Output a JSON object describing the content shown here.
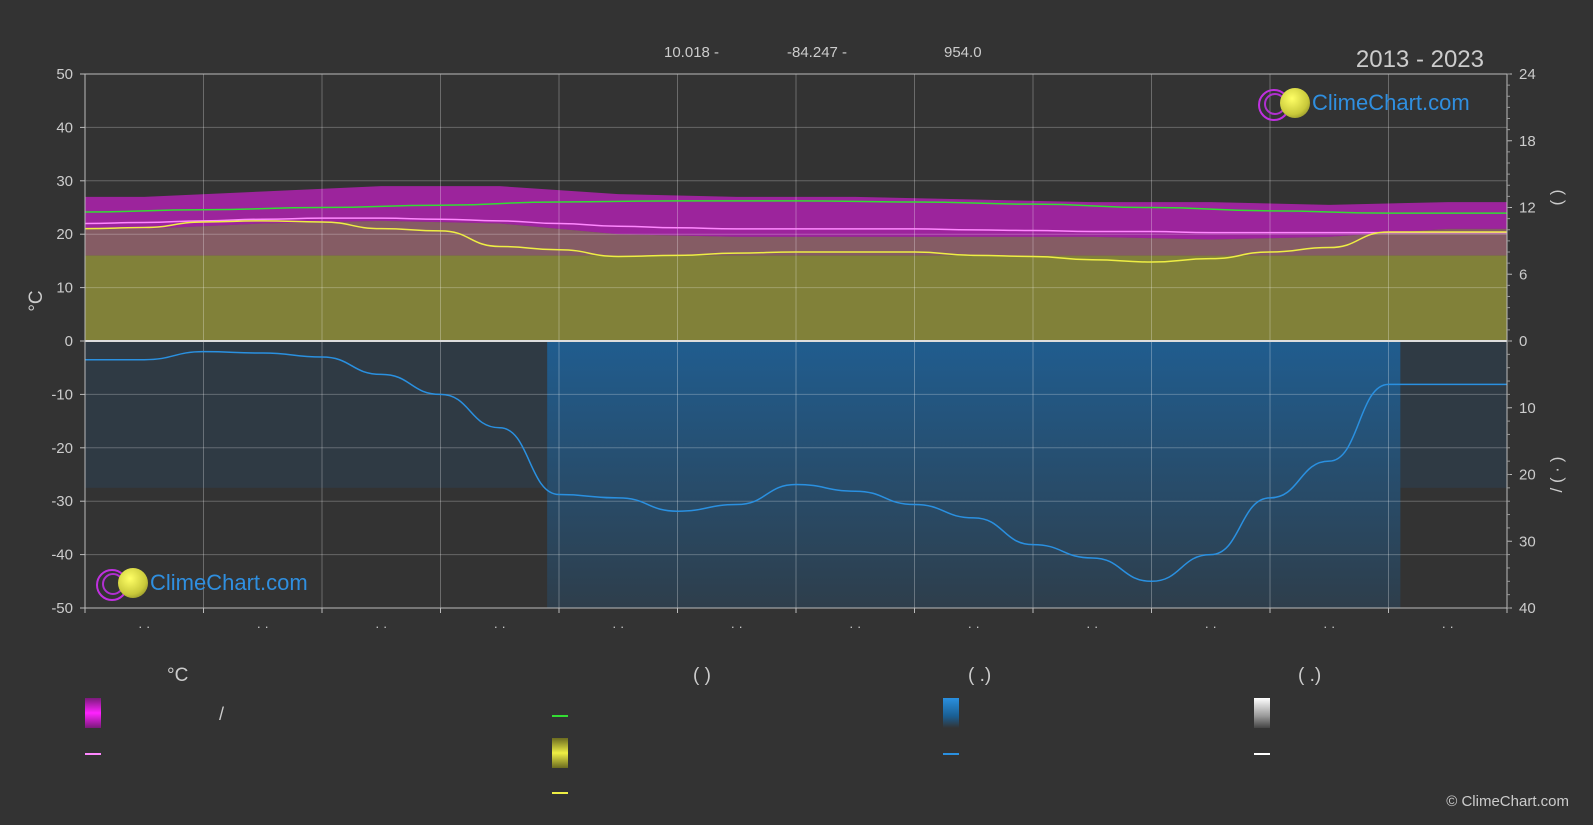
{
  "header": {
    "latitude": "10.018 -",
    "longitude": "-84.247 -",
    "elevation": "954.0",
    "years": "2013 - 2023"
  },
  "brand": {
    "logo_text": "ClimeChart.com",
    "copyright": "© ClimeChart.com"
  },
  "legend": {
    "col1_head": "°C",
    "col2_head": "(          )",
    "col3_head": "(    .)",
    "col4_head": "(    .)",
    "col1_row1_text": "/"
  },
  "colors": {
    "background": "#333333",
    "max_min_band": "#c020c0",
    "daily_avg_band": "#e88fa0",
    "sunshine_band": "#8a8a3a",
    "daylight_line": "#33dd33",
    "sunshine_line": "#eeee44",
    "avg_temp_line": "#ff88ff",
    "precip_band": "#1f5f94",
    "precip_line": "#2a90e0",
    "snow_line": "#ffffff"
  },
  "chart_data": {
    "type": "area",
    "title": "",
    "xlabel": "",
    "x_categories": [
      "· ·",
      "· ·",
      "· ·",
      "· ·",
      "· ·",
      "· ·",
      "· ·",
      "· ·",
      "· ·",
      "· ·",
      "· ·",
      "· ·"
    ],
    "left_axis": {
      "label": "°C",
      "ylim": [
        -50,
        50
      ],
      "ticks": [
        50,
        40,
        30,
        20,
        10,
        0,
        -10,
        -20,
        -30,
        -40,
        -50
      ]
    },
    "right_axis_top": {
      "label": "(   )",
      "ylim": [
        0,
        24
      ],
      "ticks": [
        24,
        18,
        12,
        6,
        0
      ]
    },
    "right_axis_bottom": {
      "label": "/ (  ·  )",
      "ylim": [
        0,
        40
      ],
      "ticks": [
        0,
        10,
        20,
        30,
        40
      ]
    },
    "series": [
      {
        "name": "",
        "axis": "temp",
        "kind": "band",
        "lower": [
          21,
          22,
          22.5,
          22,
          20,
          19.5,
          19.5,
          19.5,
          19.5,
          19,
          19.5,
          21
        ],
        "upper": [
          27,
          28,
          29,
          29,
          27.5,
          27,
          27,
          26.5,
          26,
          26,
          25.5,
          26
        ]
      },
      {
        "name": "",
        "axis": "temp",
        "kind": "line",
        "x": [
          0,
          0.5,
          1,
          1.5,
          2,
          2.5,
          3,
          3.5,
          4,
          4.5,
          5,
          5.5,
          6,
          6.5,
          7,
          7.5,
          8,
          8.5,
          9,
          9.5,
          10,
          10.5,
          11,
          11.5,
          12
        ],
        "values": [
          22,
          22.2,
          22.5,
          22.8,
          23,
          23,
          22.8,
          22.5,
          22,
          21.5,
          21.2,
          21,
          21,
          21,
          21,
          20.8,
          20.7,
          20.5,
          20.5,
          20.3,
          20.3,
          20.3,
          20.3,
          20.3,
          20.3
        ]
      },
      {
        "name": "",
        "axis": "sun",
        "kind": "line",
        "x": [
          0,
          1,
          2,
          3,
          4,
          5,
          6,
          7,
          8,
          9,
          10,
          11,
          12
        ],
        "values": [
          11.6,
          11.8,
          12,
          12.2,
          12.5,
          12.6,
          12.6,
          12.5,
          12.3,
          12.0,
          11.7,
          11.5,
          11.5
        ]
      },
      {
        "name": "",
        "axis": "sun",
        "kind": "line",
        "x": [
          0,
          0.5,
          1,
          1.5,
          2,
          2.5,
          3,
          3.5,
          4,
          4.5,
          5,
          5.5,
          6,
          6.5,
          7,
          7.5,
          8,
          8.5,
          9,
          9.5,
          10,
          10.5,
          11,
          11.5,
          12
        ],
        "values": [
          10.1,
          10.2,
          10.7,
          10.8,
          10.7,
          10.1,
          9.9,
          8.5,
          8.2,
          7.6,
          7.7,
          7.9,
          8.0,
          8.0,
          8.0,
          7.7,
          7.6,
          7.3,
          7.1,
          7.4,
          8.0,
          8.4,
          9.8,
          9.8,
          9.8
        ]
      },
      {
        "name": "",
        "axis": "precip",
        "kind": "line",
        "x": [
          0,
          0.5,
          1,
          1.5,
          2,
          2.5,
          3,
          3.5,
          4,
          4.5,
          5,
          5.5,
          6,
          6.5,
          7,
          7.5,
          8,
          8.5,
          9,
          9.5,
          10,
          10.5,
          11,
          11.5,
          12
        ],
        "values": [
          2.8,
          2.8,
          1.6,
          1.8,
          2.4,
          5,
          8,
          13,
          23,
          23.5,
          25.5,
          24.5,
          21.5,
          22.5,
          24.5,
          26.5,
          30.5,
          32.5,
          36,
          32,
          23.5,
          18,
          6.5,
          6.5,
          6.5
        ]
      }
    ]
  }
}
